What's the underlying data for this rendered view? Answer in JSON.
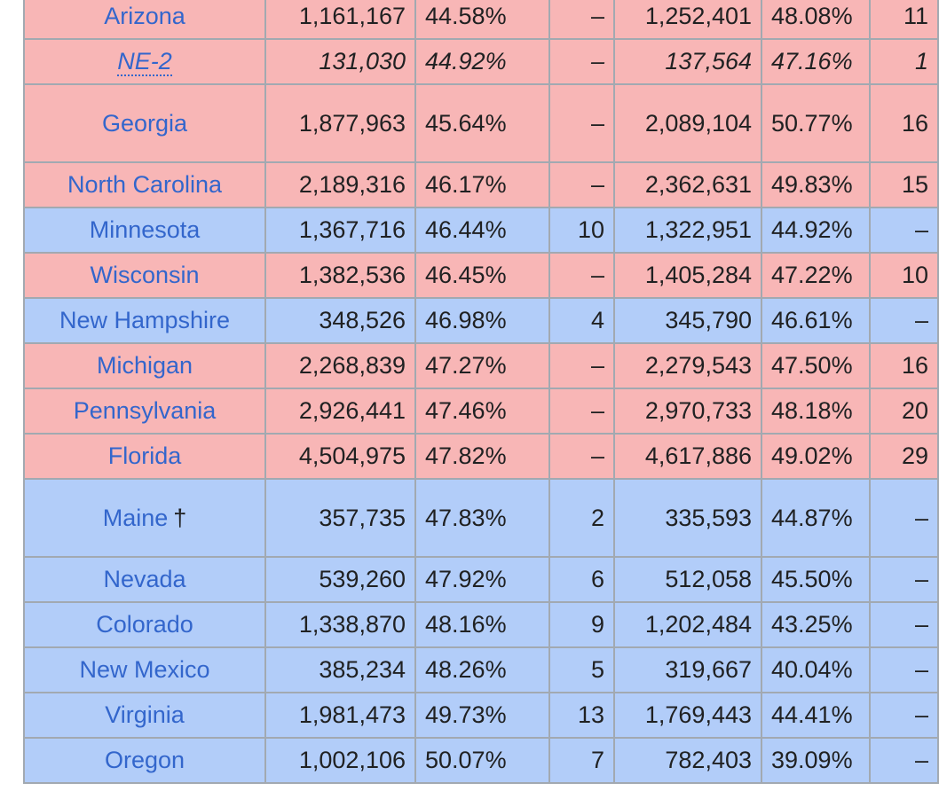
{
  "rows": [
    {
      "state": "Arizona",
      "dem_votes": "1,161,167",
      "dem_pct": "44.58%",
      "dem_ev": "–",
      "rep_votes": "1,252,401",
      "rep_pct": "48.08%",
      "rep_ev": "11",
      "color": "red"
    },
    {
      "state": "NE-2",
      "dem_votes": "131,030",
      "dem_pct": "44.92%",
      "dem_ev": "–",
      "rep_votes": "137,564",
      "rep_pct": "47.16%",
      "rep_ev": "1",
      "color": "red",
      "italic": true
    },
    {
      "state": "Georgia",
      "dem_votes": "1,877,963",
      "dem_pct": "45.64%",
      "dem_ev": "–",
      "rep_votes": "2,089,104",
      "rep_pct": "50.77%",
      "rep_ev": "16",
      "color": "red",
      "tall": true
    },
    {
      "state": "North Carolina",
      "dem_votes": "2,189,316",
      "dem_pct": "46.17%",
      "dem_ev": "–",
      "rep_votes": "2,362,631",
      "rep_pct": "49.83%",
      "rep_ev": "15",
      "color": "red"
    },
    {
      "state": "Minnesota",
      "dem_votes": "1,367,716",
      "dem_pct": "46.44%",
      "dem_ev": "10",
      "rep_votes": "1,322,951",
      "rep_pct": "44.92%",
      "rep_ev": "–",
      "color": "blue"
    },
    {
      "state": "Wisconsin",
      "dem_votes": "1,382,536",
      "dem_pct": "46.45%",
      "dem_ev": "–",
      "rep_votes": "1,405,284",
      "rep_pct": "47.22%",
      "rep_ev": "10",
      "color": "red"
    },
    {
      "state": "New Hampshire",
      "dem_votes": "348,526",
      "dem_pct": "46.98%",
      "dem_ev": "4",
      "rep_votes": "345,790",
      "rep_pct": "46.61%",
      "rep_ev": "–",
      "color": "blue"
    },
    {
      "state": "Michigan",
      "dem_votes": "2,268,839",
      "dem_pct": "47.27%",
      "dem_ev": "–",
      "rep_votes": "2,279,543",
      "rep_pct": "47.50%",
      "rep_ev": "16",
      "color": "red"
    },
    {
      "state": "Pennsylvania",
      "dem_votes": "2,926,441",
      "dem_pct": "47.46%",
      "dem_ev": "–",
      "rep_votes": "2,970,733",
      "rep_pct": "48.18%",
      "rep_ev": "20",
      "color": "red"
    },
    {
      "state": "Florida",
      "dem_votes": "4,504,975",
      "dem_pct": "47.82%",
      "dem_ev": "–",
      "rep_votes": "4,617,886",
      "rep_pct": "49.02%",
      "rep_ev": "29",
      "color": "red"
    },
    {
      "state": "Maine",
      "dagger": "†",
      "dem_votes": "357,735",
      "dem_pct": "47.83%",
      "dem_ev": "2",
      "rep_votes": "335,593",
      "rep_pct": "44.87%",
      "rep_ev": "–",
      "color": "blue",
      "tall": true
    },
    {
      "state": "Nevada",
      "dem_votes": "539,260",
      "dem_pct": "47.92%",
      "dem_ev": "6",
      "rep_votes": "512,058",
      "rep_pct": "45.50%",
      "rep_ev": "–",
      "color": "blue"
    },
    {
      "state": "Colorado",
      "dem_votes": "1,338,870",
      "dem_pct": "48.16%",
      "dem_ev": "9",
      "rep_votes": "1,202,484",
      "rep_pct": "43.25%",
      "rep_ev": "–",
      "color": "blue"
    },
    {
      "state": "New Mexico",
      "dem_votes": "385,234",
      "dem_pct": "48.26%",
      "dem_ev": "5",
      "rep_votes": "319,667",
      "rep_pct": "40.04%",
      "rep_ev": "–",
      "color": "blue"
    },
    {
      "state": "Virginia",
      "dem_votes": "1,981,473",
      "dem_pct": "49.73%",
      "dem_ev": "13",
      "rep_votes": "1,769,443",
      "rep_pct": "44.41%",
      "rep_ev": "–",
      "color": "blue"
    },
    {
      "state": "Oregon",
      "dem_votes": "1,002,106",
      "dem_pct": "50.07%",
      "dem_ev": "7",
      "rep_votes": "782,403",
      "rep_pct": "39.09%",
      "rep_ev": "–",
      "color": "blue"
    }
  ],
  "colors": {
    "red_row": "#f8b6b6",
    "blue_row": "#b2cdf9",
    "link": "#3366cc",
    "border": "#a2a9b1"
  }
}
